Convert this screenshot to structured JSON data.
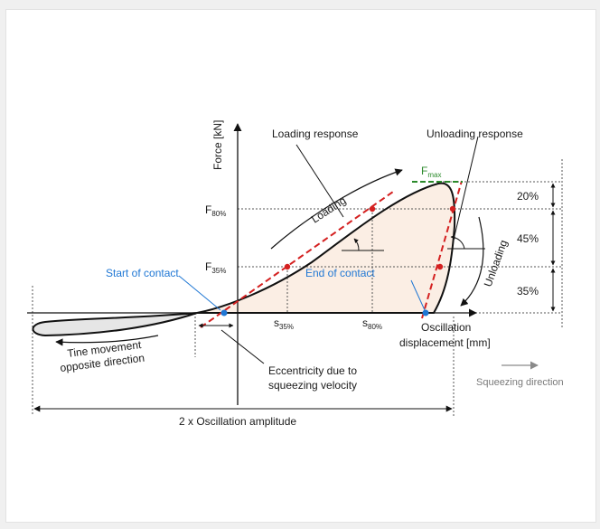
{
  "axes": {
    "y_label": "Force [kN]",
    "x_label_line1": "Oscillation",
    "x_label_line2": "displacement [mm]"
  },
  "labels": {
    "loading_response": "Loading response",
    "unloading_response": "Unloading response",
    "loading": "Loading",
    "unloading": "Unloading",
    "start_of_contact": "Start of contact",
    "end_of_contact": "End of contact",
    "tine_movement_line1": "Tine movement",
    "tine_movement_line2": "opposite direction",
    "eccentricity_line1": "Eccentricity due to",
    "eccentricity_line2": "squeezing velocity",
    "squeezing_direction": "Squeezing direction",
    "oscillation_amplitude": "2 x Oscillation amplitude"
  },
  "markers": {
    "fmax": {
      "base": "F",
      "sub": "max"
    },
    "f80": {
      "base": "F",
      "sub": "80%"
    },
    "f35": {
      "base": "F",
      "sub": "35%"
    },
    "s35": {
      "base": "s",
      "sub": "35%"
    },
    "s80": {
      "base": "s",
      "sub": "80%"
    }
  },
  "percent_bands": [
    "20%",
    "45%",
    "35%"
  ],
  "colors": {
    "curve": "#111111",
    "fit_line": "#d42020",
    "points": "#d42020",
    "contact_points": "#1f77d4",
    "fill_loop": "#fbeee4",
    "fill_negative": "#e6e6e6",
    "fmax_line": "#2b8a2b"
  }
}
